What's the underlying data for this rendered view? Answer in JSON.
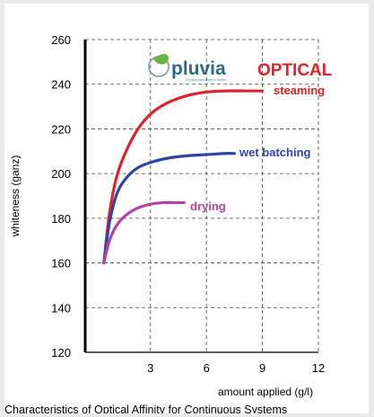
{
  "brand": {
    "logo_text": "pluvia",
    "logo_subtext": "Chemical specialities for textiles",
    "headline": "OPTICAL",
    "headline_color": "#e0232b",
    "logo_color": "#2d6a84",
    "leaf_color": "#6cb33f"
  },
  "chart_data": {
    "type": "line",
    "title": "",
    "caption": "Characteristics of  Optical Affinity for Continuous Systems",
    "xlabel": "amount applied (g/l)",
    "ylabel": "whiteness (ganz)",
    "xlim": [
      -0.5,
      12
    ],
    "ylim": [
      120,
      260
    ],
    "xticks": [
      3,
      6,
      9,
      12
    ],
    "yticks": [
      120,
      140,
      160,
      180,
      200,
      220,
      240,
      260
    ],
    "grid": "dashed",
    "series": [
      {
        "name": "steaming",
        "color": "#e0232b",
        "x": [
          0.5,
          0.8,
          1.2,
          1.8,
          2.5,
          3.2,
          4,
          5,
          6,
          7,
          8,
          9
        ],
        "y": [
          160,
          182,
          199,
          212,
          222,
          228,
          232,
          235,
          236.5,
          237,
          237,
          237
        ]
      },
      {
        "name": "wet batching",
        "color": "#2e45a8",
        "x": [
          0.5,
          0.8,
          1.2,
          1.7,
          2.3,
          3,
          4,
          5,
          6,
          7,
          7.5
        ],
        "y": [
          160,
          178,
          191,
          198,
          202.5,
          205,
          207,
          208,
          208.5,
          209,
          209
        ]
      },
      {
        "name": "drying",
        "color": "#b443a8",
        "x": [
          0.5,
          0.8,
          1.2,
          1.7,
          2.3,
          3,
          3.7,
          4.3,
          4.8
        ],
        "y": [
          160,
          170,
          177,
          181.5,
          184.5,
          186.3,
          187,
          187,
          187
        ]
      }
    ]
  }
}
